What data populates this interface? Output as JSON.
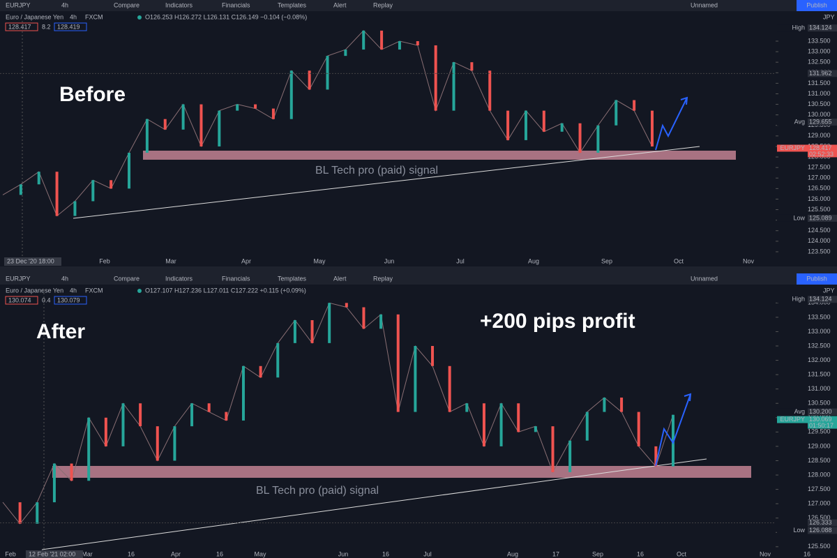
{
  "panels": [
    {
      "symbol": "EURJPY",
      "interval": "4h",
      "tools": [
        "Compare",
        "Indicators",
        "Financials",
        "Templates",
        "Alert",
        "Replay"
      ],
      "layout_name": "Unnamed",
      "publish": "Publish",
      "legend": {
        "title": "Euro / Japanese Yen",
        "interval": "4h",
        "exchange": "FXCM",
        "ohlc": "O126.253 H126.272 L126.131 C126.149 −0.104 (−0.08%)"
      },
      "bid": "128.417",
      "spread": "8.2",
      "ask": "128.419",
      "currency": "JPY",
      "annotations": [
        "Before"
      ],
      "signal": "BL Tech pro (paid) signal",
      "ylim": [
        123.2,
        134.46
      ],
      "yticks": [
        {
          "value": 123.5,
          "label": "123.500"
        },
        {
          "value": 124,
          "label": "124.000"
        },
        {
          "value": 124.5,
          "label": "124.500"
        },
        {
          "value": 125,
          "label": "125.000"
        },
        {
          "value": 125.5,
          "label": "125.500"
        },
        {
          "value": 126,
          "label": "126.000"
        },
        {
          "value": 126.5,
          "label": "126.500"
        },
        {
          "value": 127,
          "label": "127.000"
        },
        {
          "value": 127.5,
          "label": "127.500"
        },
        {
          "value": 128,
          "label": "128.000"
        },
        {
          "value": 128.5,
          "label": "128.500"
        },
        {
          "value": 129,
          "label": "129.000"
        },
        {
          "value": 129.5,
          "label": "129.500"
        },
        {
          "value": 130,
          "label": "130.000"
        },
        {
          "value": 130.5,
          "label": "130.500"
        },
        {
          "value": 131,
          "label": "131.000"
        },
        {
          "value": 131.5,
          "label": "131.500"
        },
        {
          "value": 132,
          "label": "132.000"
        },
        {
          "value": 132.5,
          "label": "132.500"
        },
        {
          "value": 133,
          "label": "133.000"
        },
        {
          "value": 133.5,
          "label": "133.500"
        }
      ],
      "x_labels": [
        "Feb",
        "Mar",
        "Apr",
        "May",
        "Jun",
        "Jul",
        "Aug",
        "Sep",
        "Oct",
        "Nov"
      ],
      "crosshair": "23 Dec '20  18:00",
      "closes": [
        126.2,
        126.7,
        127.3,
        125.2,
        125.9,
        126.9,
        126.5,
        128.2,
        129.8,
        129.3,
        130.5,
        128.5,
        130.2,
        130.5,
        130.3,
        129.8,
        132.1,
        131.2,
        132.8,
        133.1,
        134.0,
        133.1,
        133.5,
        133.3,
        130.2,
        132.5,
        132.1,
        130.2,
        128.8,
        130.2,
        129.2,
        129.6,
        128.2,
        129.5,
        130.7,
        130.2,
        128.5
      ],
      "badges": [
        {
          "name": "High",
          "price": {
            "value": 134.124,
            "label": "134.124"
          }
        },
        {
          "price": {
            "value": 131.962,
            "label": "131.962"
          }
        },
        {
          "name": "Avg",
          "price": {
            "value": 129.655,
            "label": "129.655"
          }
        },
        {
          "name": "EURJPY",
          "price": {
            "value": 128.417,
            "label": "128.417"
          },
          "countdown": "02:52:33"
        },
        {
          "name": "Low",
          "price": {
            "value": 125.089,
            "label": "125.089"
          }
        }
      ]
    },
    {
      "symbol": "EURJPY",
      "interval": "4h",
      "tools": [
        "Compare",
        "Indicators",
        "Financials",
        "Templates",
        "Alert",
        "Replay"
      ],
      "layout_name": "Unnamed",
      "publish": "Publish",
      "legend": {
        "title": "Euro / Japanese Yen",
        "interval": "4h",
        "exchange": "FXCM",
        "ohlc": "O127.107 H127.236 L127.011 C127.222 +0.115 (+0.09%)"
      },
      "bid": "130.074",
      "spread": "0.4",
      "ask": "130.079",
      "currency": "JPY",
      "annotations": [
        "After",
        "+200 pips profit"
      ],
      "signal": "BL Tech pro (paid) signal",
      "ylim": [
        125.35,
        134.47
      ],
      "yticks": [
        {
          "value": 125.5,
          "label": "125.500"
        },
        {
          "value": 126,
          "label": "126.000"
        },
        {
          "value": 126.5,
          "label": "126.500"
        },
        {
          "value": 127,
          "label": "127.000"
        },
        {
          "value": 127.5,
          "label": "127.500"
        },
        {
          "value": 128,
          "label": "128.000"
        },
        {
          "value": 128.5,
          "label": "128.500"
        },
        {
          "value": 129,
          "label": "129.000"
        },
        {
          "value": 129.5,
          "label": "129.500"
        },
        {
          "value": 130,
          "label": "130.000"
        },
        {
          "value": 130.5,
          "label": "130.500"
        },
        {
          "value": 131,
          "label": "131.000"
        },
        {
          "value": 131.5,
          "label": "131.500"
        },
        {
          "value": 132,
          "label": "132.000"
        },
        {
          "value": 132.5,
          "label": "132.500"
        },
        {
          "value": 133,
          "label": "133.000"
        },
        {
          "value": 133.5,
          "label": "133.500"
        },
        {
          "value": 134,
          "label": "134.000"
        }
      ],
      "x_labels": [
        "Feb",
        "Mar",
        "16",
        "Apr",
        "16",
        "May",
        "Jun",
        "16",
        "Jul",
        "Aug",
        "17",
        "Sep",
        "16",
        "Oct",
        "Nov",
        "16"
      ],
      "crosshair": "12 Feb '21  02:00",
      "closes": [
        127.05,
        126.3,
        127.05,
        128.4,
        127.8,
        130.0,
        129.0,
        130.5,
        129.7,
        128.5,
        129.7,
        130.5,
        130.2,
        129.9,
        131.8,
        131.4,
        132.6,
        133.4,
        132.6,
        134.0,
        133.85,
        133.1,
        133.6,
        130.2,
        132.5,
        131.8,
        130.2,
        130.5,
        129.0,
        130.5,
        129.5,
        129.7,
        128.1,
        129.2,
        130.2,
        130.7,
        130.2,
        129.0,
        128.3,
        130.1
      ],
      "badges": [
        {
          "name": "High",
          "price": {
            "value": 134.124,
            "label": "134.124"
          }
        },
        {
          "name": "Avg",
          "price": {
            "value": 130.2,
            "label": "130.200"
          }
        },
        {
          "name": "EURJPY",
          "price": {
            "value": 130.069,
            "label": "130.069"
          },
          "countdown": "01:50:17"
        },
        {
          "price": {
            "value": 126.333,
            "label": "126.333"
          }
        },
        {
          "name": "Low",
          "price": {
            "value": 126.088,
            "label": "126.088"
          }
        }
      ]
    }
  ]
}
